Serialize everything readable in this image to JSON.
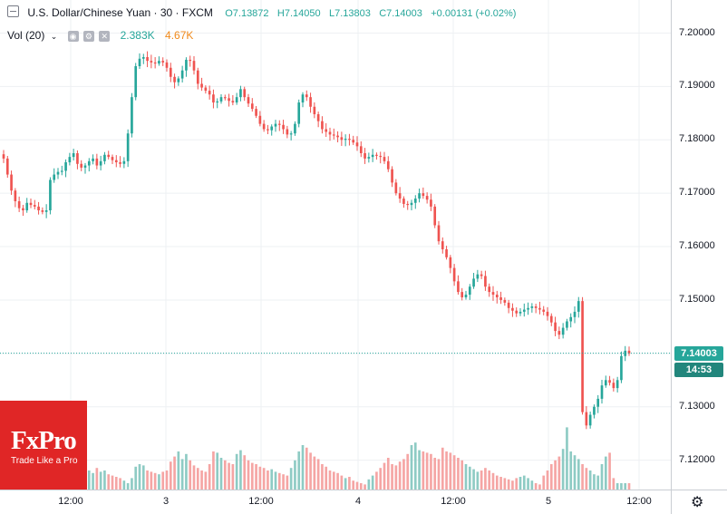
{
  "legend": {
    "title": "U.S. Dollar/Chinese Yuan · 30 · FXCM",
    "open": "O7.13872",
    "high": "H7.14050",
    "low": "L7.13803",
    "close": "C7.14003",
    "change": "+0.00131 (+0.02%)"
  },
  "volume": {
    "label": "Vol (20)",
    "value1": "2.383K",
    "value2": "4.67K"
  },
  "price_label": "7.14003",
  "countdown": "14:53",
  "logo": {
    "brand": "FxPro",
    "tagline": "Trade Like a Pro"
  },
  "colors": {
    "up": "#26a69a",
    "down": "#ef5350",
    "grid": "#eef0f3",
    "vol_up": "#8ecbc4",
    "vol_down": "#f5a5a4"
  },
  "chart_data": {
    "type": "candlestick",
    "y_ticks": [
      "7.20000",
      "7.19000",
      "7.18000",
      "7.17000",
      "7.16000",
      "7.15000",
      "7.14000",
      "7.13000",
      "7.12000"
    ],
    "x_ticks": [
      "12:00",
      "3",
      "12:00",
      "4",
      "12:00",
      "5",
      "12:00"
    ],
    "ylim": [
      7.1145,
      7.2045
    ],
    "last_price": 7.14003,
    "series": [
      {
        "name": "price",
        "values": [
          7.1765,
          7.1735,
          7.1705,
          7.1685,
          7.1672,
          7.1668,
          7.1682,
          7.1678,
          7.1675,
          7.1668,
          7.1665,
          7.1668,
          7.1725,
          7.1735,
          7.174,
          7.1742,
          7.1758,
          7.1768,
          7.1775,
          7.1755,
          7.1748,
          7.1752,
          7.176,
          7.1765,
          7.1752,
          7.176,
          7.1772,
          7.1768,
          7.1762,
          7.1758,
          7.1755,
          7.176,
          7.1812,
          7.188,
          7.1938,
          7.1952,
          7.1955,
          7.1948,
          7.1945,
          7.1943,
          7.1948,
          7.1945,
          7.1935,
          7.1918,
          7.1908,
          7.1915,
          7.193,
          7.195,
          7.1948,
          7.193,
          7.1905,
          7.1898,
          7.1892,
          7.1885,
          7.187,
          7.1872,
          7.188,
          7.1878,
          7.1873,
          7.187,
          7.188,
          7.1895,
          7.188,
          7.1868,
          7.1858,
          7.1845,
          7.183,
          7.182,
          7.1818,
          7.1825,
          7.183,
          7.1828,
          7.182,
          7.181,
          7.1812,
          7.183,
          7.187,
          7.1885,
          7.188,
          7.1862,
          7.1848,
          7.1835,
          7.182,
          7.1815,
          7.181,
          7.1808,
          7.1805,
          7.18,
          7.1802,
          7.18,
          7.1795,
          7.1788,
          7.1775,
          7.1765,
          7.1768,
          7.1772,
          7.177,
          7.1768,
          7.176,
          7.1745,
          7.172,
          7.17,
          7.169,
          7.168,
          7.1678,
          7.1682,
          7.169,
          7.17,
          7.1695,
          7.1688,
          7.1675,
          7.164,
          7.161,
          7.1595,
          7.158,
          7.156,
          7.1535,
          7.1515,
          7.1505,
          7.151,
          7.1525,
          7.154,
          7.1548,
          7.1545,
          7.1525,
          7.1515,
          7.151,
          7.1505,
          7.15,
          7.1495,
          7.1485,
          7.148,
          7.1475,
          7.1478,
          7.1482,
          7.1485,
          7.1488,
          7.1485,
          7.1482,
          7.1478,
          7.147,
          7.1458,
          7.1442,
          7.1435,
          7.1448,
          7.146,
          7.1468,
          7.1478,
          7.1498,
          7.129,
          7.1265,
          7.1285,
          7.13,
          7.1315,
          7.134,
          7.135,
          7.1345,
          7.1335,
          7.135,
          7.1395,
          7.1405,
          7.14
        ]
      }
    ],
    "volume": [
      18,
      14,
      10,
      8,
      6,
      12,
      10,
      8,
      7,
      6,
      8,
      10,
      12,
      22,
      28,
      24,
      20,
      26,
      30,
      26,
      32,
      28,
      30,
      26,
      34,
      28,
      30,
      24,
      22,
      20,
      18,
      14,
      10,
      18,
      36,
      40,
      38,
      30,
      28,
      26,
      24,
      28,
      30,
      44,
      52,
      60,
      48,
      56,
      46,
      38,
      34,
      30,
      28,
      40,
      60,
      58,
      50,
      46,
      42,
      40,
      56,
      62,
      54,
      46,
      42,
      40,
      36,
      34,
      30,
      32,
      28,
      26,
      24,
      22,
      34,
      46,
      60,
      70,
      66,
      58,
      52,
      48,
      40,
      36,
      30,
      28,
      26,
      22,
      18,
      20,
      14,
      12,
      10,
      8,
      16,
      22,
      28,
      34,
      42,
      50,
      40,
      38,
      44,
      48,
      56,
      70,
      74,
      62,
      60,
      58,
      56,
      50,
      48,
      66,
      60,
      58,
      54,
      50,
      46,
      40,
      36,
      32,
      28,
      30,
      34,
      30,
      26,
      22,
      20,
      18,
      16,
      14,
      18,
      20,
      22,
      18,
      14,
      10,
      8,
      22,
      30,
      40,
      46,
      52,
      64,
      98,
      60,
      54,
      48,
      40,
      34,
      30,
      24,
      22,
      40,
      52,
      58,
      18
    ]
  }
}
